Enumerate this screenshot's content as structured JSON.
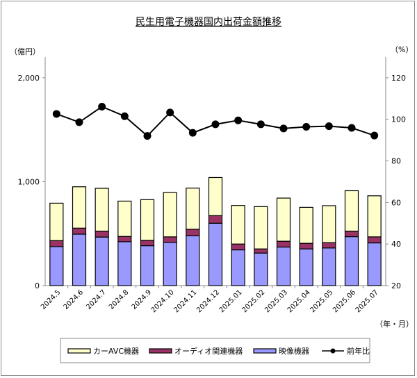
{
  "chart_data": {
    "type": "bar",
    "stacked": true,
    "title": "民生用電子機器国内出荷金額推移",
    "ylabel": "（億円）",
    "y2label": "（%）",
    "xlabel": "（年・月）",
    "ylim": [
      0,
      2200
    ],
    "y2lim": [
      20,
      130
    ],
    "yticks": [
      "0",
      "1,000",
      "2,000"
    ],
    "y2ticks": [
      "20",
      "40",
      "60",
      "80",
      "100",
      "120"
    ],
    "categories": [
      "2024.5",
      "2024.6",
      "2024.7",
      "2024.8",
      "2024.9",
      "2024.10",
      "2024.11",
      "2024.12",
      "2025.01",
      "2025.02",
      "2025.03",
      "2025.04",
      "2025.05",
      "2025.06",
      "2025.07"
    ],
    "series": [
      {
        "name": "映像機器",
        "color": "#9999ff",
        "values": [
          375,
          495,
          467,
          422,
          384,
          416,
          480,
          600,
          344,
          313,
          371,
          353,
          362,
          471,
          411
        ]
      },
      {
        "name": "オーディオ関連機器",
        "color": "#993366",
        "values": [
          58,
          58,
          57,
          51,
          52,
          53,
          62,
          73,
          56,
          40,
          56,
          54,
          51,
          53,
          58
        ]
      },
      {
        "name": "カーAVC機器",
        "color": "#ffffcc",
        "values": [
          360,
          398,
          412,
          340,
          391,
          427,
          396,
          367,
          371,
          407,
          415,
          346,
          356,
          389,
          395
        ]
      },
      {
        "name": "前年比",
        "type": "line",
        "axis": "right",
        "color": "#000000",
        "values": [
          102.6,
          98.6,
          106.1,
          101.5,
          92.0,
          103.3,
          93.5,
          97.6,
          99.5,
          97.6,
          95.6,
          96.4,
          96.7,
          95.9,
          92.2
        ]
      }
    ],
    "legend": "bottom",
    "grid": false
  }
}
